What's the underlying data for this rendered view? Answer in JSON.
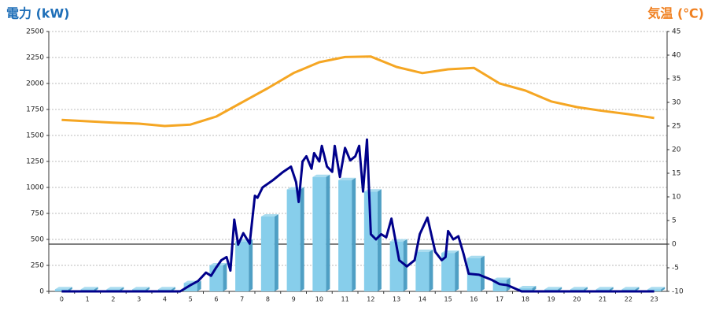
{
  "chart_data": {
    "type": "bar",
    "ylabel": "電力 (kW)",
    "y2label": "気温 (℃)",
    "categories": [
      "0",
      "1",
      "2",
      "3",
      "4",
      "5",
      "6",
      "7",
      "8",
      "9",
      "10",
      "11",
      "12",
      "13",
      "14",
      "15",
      "16",
      "17",
      "18",
      "19",
      "20",
      "21",
      "22",
      "23"
    ],
    "ylim": [
      0,
      2500
    ],
    "yticks": [
      0,
      250,
      500,
      750,
      1000,
      1250,
      1500,
      1750,
      2000,
      2250,
      2500
    ],
    "y2lim": [
      -10,
      45
    ],
    "y2ticks": [
      -10,
      -5,
      0,
      5,
      10,
      15,
      20,
      25,
      30,
      35,
      40,
      45
    ],
    "grid": true,
    "series": [
      {
        "type": "bar",
        "color": "#87ceeb",
        "values": [
          20,
          20,
          20,
          20,
          20,
          80,
          250,
          480,
          720,
          980,
          1100,
          1070,
          960,
          480,
          380,
          370,
          320,
          110,
          30,
          20,
          20,
          20,
          20,
          20
        ]
      },
      {
        "type": "line",
        "color": "#00008b",
        "x": [
          0,
          4.6,
          5,
          5.3,
          5.6,
          5.8,
          6.0,
          6.2,
          6.4,
          6.55,
          6.7,
          6.85,
          7.05,
          7.3,
          7.5,
          7.6,
          7.8,
          8.2,
          8.6,
          8.9,
          9.1,
          9.2,
          9.35,
          9.5,
          9.7,
          9.8,
          10.0,
          10.1,
          10.3,
          10.5,
          10.6,
          10.8,
          11.0,
          11.2,
          11.4,
          11.55,
          11.7,
          11.85,
          12.0,
          12.2,
          12.4,
          12.6,
          12.8,
          13.1,
          13.4,
          13.7,
          13.9,
          14.2,
          14.5,
          14.75,
          14.9,
          15.0,
          15.2,
          15.4,
          15.6,
          15.8,
          16.2,
          16.7,
          17.0,
          17.3,
          17.85,
          23
        ],
        "values": [
          0,
          0,
          60,
          100,
          180,
          150,
          230,
          300,
          330,
          200,
          690,
          450,
          560,
          460,
          920,
          900,
          1000,
          1070,
          1150,
          1200,
          1050,
          860,
          1250,
          1300,
          1180,
          1330,
          1250,
          1400,
          1200,
          1150,
          1400,
          1100,
          1380,
          1260,
          1300,
          1400,
          960,
          1460,
          550,
          500,
          550,
          520,
          700,
          300,
          240,
          300,
          550,
          710,
          380,
          300,
          330,
          580,
          500,
          530,
          360,
          170,
          160,
          110,
          70,
          60,
          0,
          0
        ]
      },
      {
        "type": "line",
        "axis": "y2",
        "color": "#f5a623",
        "values": [
          26.3,
          26,
          25.7,
          25.5,
          25,
          25.3,
          27,
          30,
          33,
          36.2,
          38.5,
          39.6,
          39.7,
          37.5,
          36.2,
          37,
          37.3,
          34,
          32.5,
          30.2,
          29,
          28.2,
          27.5,
          26.7
        ]
      }
    ]
  }
}
